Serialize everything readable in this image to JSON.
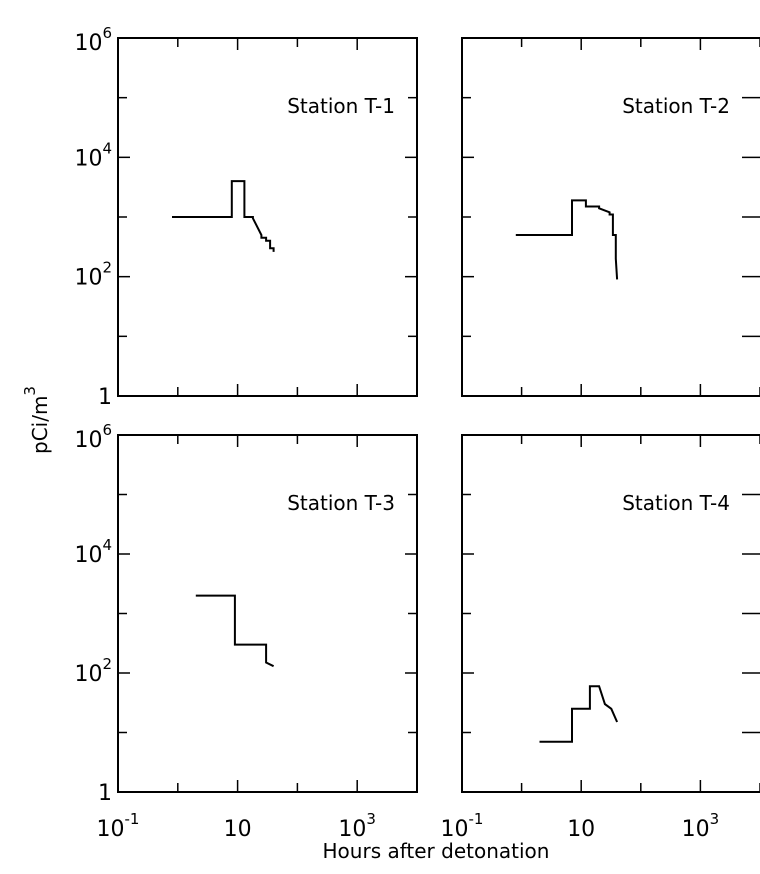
{
  "chart_data": {
    "type": "line",
    "log_x": true,
    "log_y": true,
    "xlim": [
      0.1,
      10000
    ],
    "ylim": [
      1,
      1000000
    ],
    "xlabel": "Hours after detonation",
    "ylabel_base": "pCi/m",
    "ylabel_exp": "3",
    "x_ticks": [
      {
        "base": "10",
        "exp": "-1"
      },
      {
        "base": "10",
        "exp": ""
      },
      {
        "base": "10",
        "exp": "3"
      }
    ],
    "y_ticks": [
      {
        "base": "1",
        "exp": ""
      },
      {
        "base": "10",
        "exp": "2"
      },
      {
        "base": "10",
        "exp": "4"
      },
      {
        "base": "10",
        "exp": "6"
      }
    ],
    "panels": [
      {
        "title": "Station T-1",
        "x": [
          0.8,
          8,
          8,
          13,
          13,
          18,
          18,
          25,
          25,
          30,
          30,
          35,
          35,
          40,
          40
        ],
        "y": [
          1000,
          1000,
          4000,
          4000,
          1000,
          1000,
          950,
          500,
          450,
          450,
          400,
          400,
          300,
          300,
          260
        ]
      },
      {
        "title": "Station T-2",
        "x": [
          0.8,
          7,
          7,
          12,
          12,
          20,
          20,
          30,
          30,
          34,
          34,
          38,
          38,
          40
        ],
        "y": [
          500,
          500,
          1900,
          1900,
          1500,
          1500,
          1400,
          1200,
          1100,
          1100,
          500,
          500,
          200,
          90
        ]
      },
      {
        "title": "Station T-3",
        "x": [
          2,
          9,
          9,
          30,
          30,
          40
        ],
        "y": [
          2000,
          2000,
          300,
          300,
          150,
          130
        ]
      },
      {
        "title": "Station T-4",
        "x": [
          2,
          7,
          7,
          14,
          14,
          20,
          25,
          25,
          32,
          32,
          40,
          40
        ],
        "y": [
          7,
          7,
          25,
          25,
          60,
          60,
          30,
          30,
          25,
          25,
          15,
          15
        ]
      }
    ]
  }
}
